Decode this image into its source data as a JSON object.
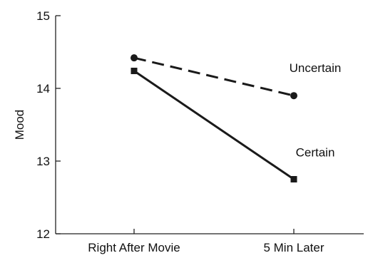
{
  "chart_data": {
    "type": "line",
    "categories": [
      "Right After Movie",
      "5 Min Later"
    ],
    "ylabel": "Mood",
    "ylim": [
      12,
      15
    ],
    "yticks": [
      12,
      13,
      14,
      15
    ],
    "grid": false,
    "series": [
      {
        "name": "Uncertain",
        "values": [
          14.42,
          13.9
        ],
        "line_style": "dashed",
        "marker": "circle",
        "color": "#1a1a1a"
      },
      {
        "name": "Certain",
        "values": [
          14.24,
          12.75
        ],
        "line_style": "solid",
        "marker": "square",
        "color": "#1a1a1a"
      }
    ]
  }
}
